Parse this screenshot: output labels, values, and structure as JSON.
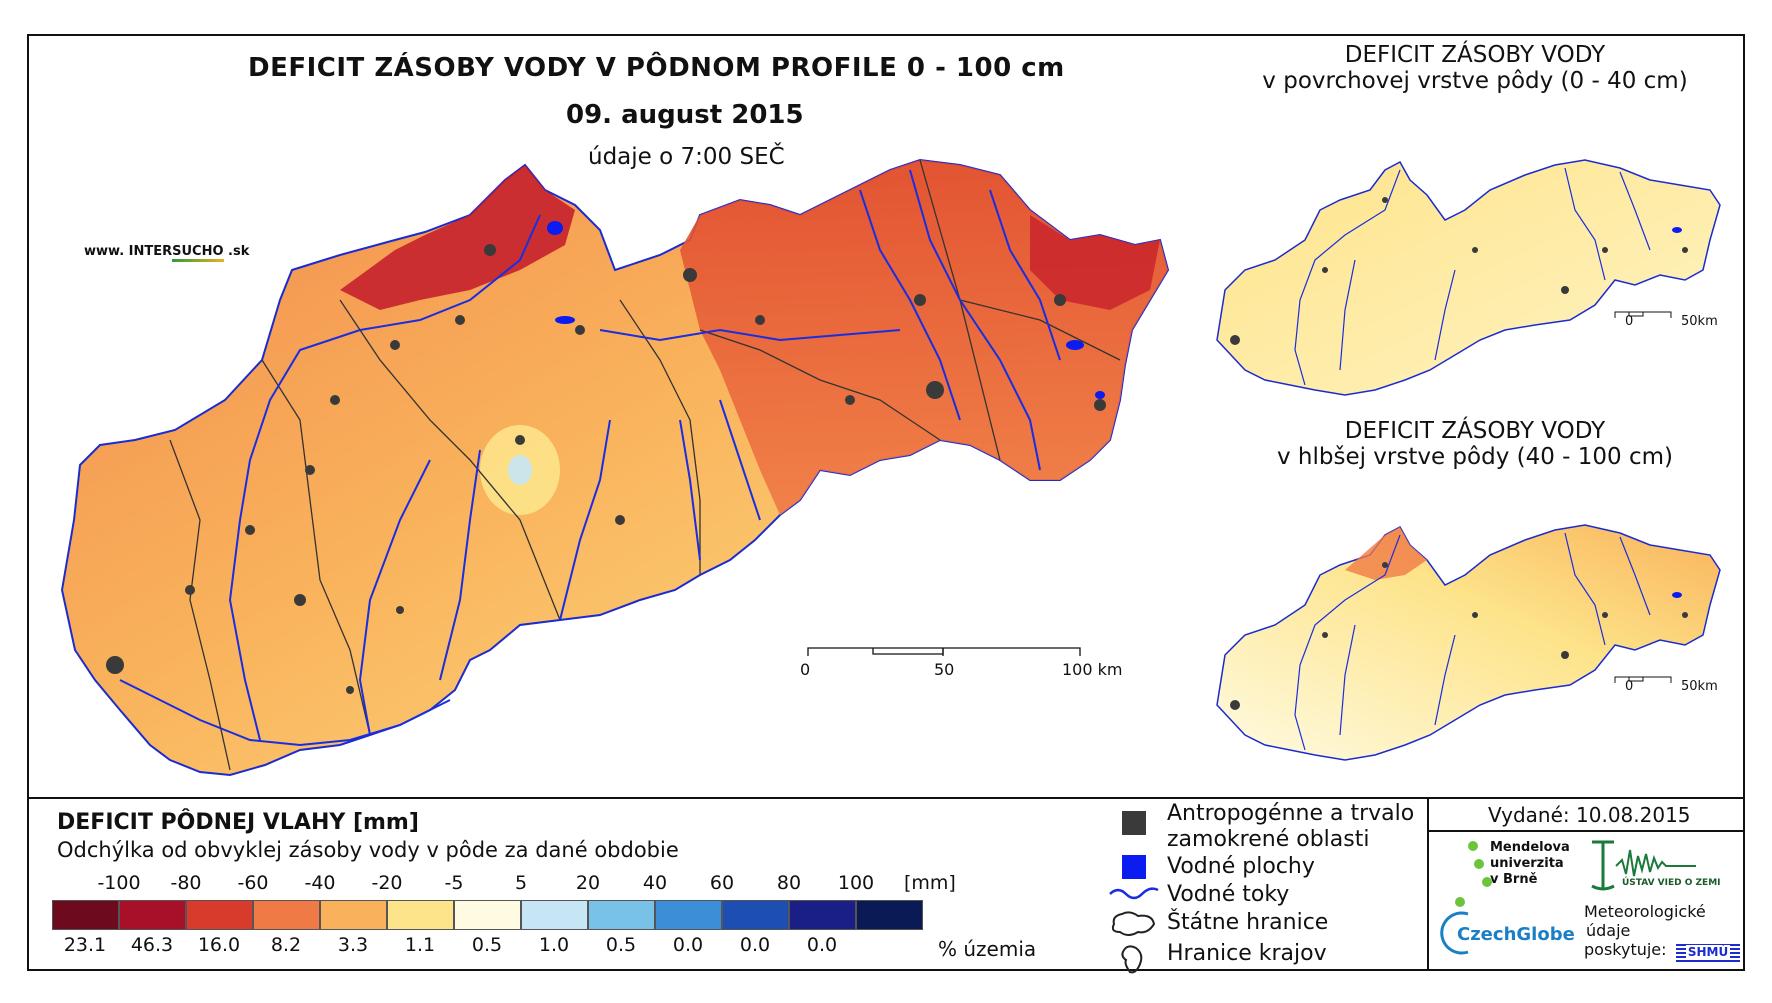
{
  "map": {
    "title": "DEFICIT ZÁSOBY VODY V PÔDNOM PROFILE 0 - 100 cm",
    "date": "09. august 2015",
    "time_note": "údaje o 7:00 SEČ",
    "website_prefix": "www. INTER",
    "website_highlight": "SUCHO",
    "website_suffix": " .sk",
    "scale_labels": [
      "0",
      "50",
      "100 km"
    ]
  },
  "inset_surface": {
    "title_line1": "DEFICIT ZÁSOBY VODY",
    "title_line2": "v povrchovej vrstve pôdy (0 - 40 cm)",
    "scale_labels": [
      "0",
      "50km"
    ]
  },
  "inset_deep": {
    "title_line1": "DEFICIT ZÁSOBY VODY",
    "title_line2": "v hlbšej vrstve pôdy (40 - 100 cm)",
    "scale_labels": [
      "0",
      "50km"
    ]
  },
  "legend": {
    "title": "DEFICIT PÔDNEJ VLAHY [mm]",
    "subtitle": "Odchýlka od obvyklej zásoby vody v pôde za dané obdobie",
    "unit": "[mm]",
    "percent_label": "% územia",
    "classes": [
      {
        "value_label": "-100",
        "color": "#6e0a1e",
        "percent": "23.1"
      },
      {
        "value_label": "-80",
        "color": "#a8102a",
        "percent": "46.3"
      },
      {
        "value_label": "-60",
        "color": "#d83a2c",
        "percent": "16.0"
      },
      {
        "value_label": "-40",
        "color": "#f07a45",
        "percent": "8.2"
      },
      {
        "value_label": "-20",
        "color": "#f9b25b",
        "percent": "3.3"
      },
      {
        "value_label": "-5",
        "color": "#fde389",
        "percent": "1.1"
      },
      {
        "value_label": "5",
        "color": "#fffbe3",
        "percent": "0.5"
      },
      {
        "value_label": "20",
        "color": "#c6e6f5",
        "percent": "1.0"
      },
      {
        "value_label": "40",
        "color": "#78c2e8",
        "percent": "0.5"
      },
      {
        "value_label": "60",
        "color": "#3c8fd6",
        "percent": "0.0"
      },
      {
        "value_label": "80",
        "color": "#1d4fb2",
        "percent": "0.0"
      },
      {
        "value_label": "100",
        "color": "#1a1f88",
        "percent": "0.0"
      },
      {
        "value_label": "",
        "color": "#0a1a55",
        "percent": ""
      }
    ],
    "keys": {
      "urban_line1": "Antropogénne a trvalo",
      "urban_line2": "zamokrené oblasti",
      "water_bodies": "Vodné plochy",
      "rivers": "Vodné toky",
      "state_border": "Štátne hranice",
      "region_border": "Hranice krajov"
    }
  },
  "credits": {
    "issued": "Vydané: 10.08.2015",
    "mendel": [
      "Mendelova",
      "univerzita",
      "v Brně"
    ],
    "czechglobe": "CzechGlobe",
    "ustav": "ÚSTAV VIED O ZEMI",
    "meteo": [
      "Meteorologické",
      "údaje",
      "poskytuje:"
    ],
    "shmu": "SHMÚ"
  },
  "colors": {
    "river": "#1a2de0",
    "water": "#0a1cf0",
    "urban": "#3a3a3a"
  }
}
